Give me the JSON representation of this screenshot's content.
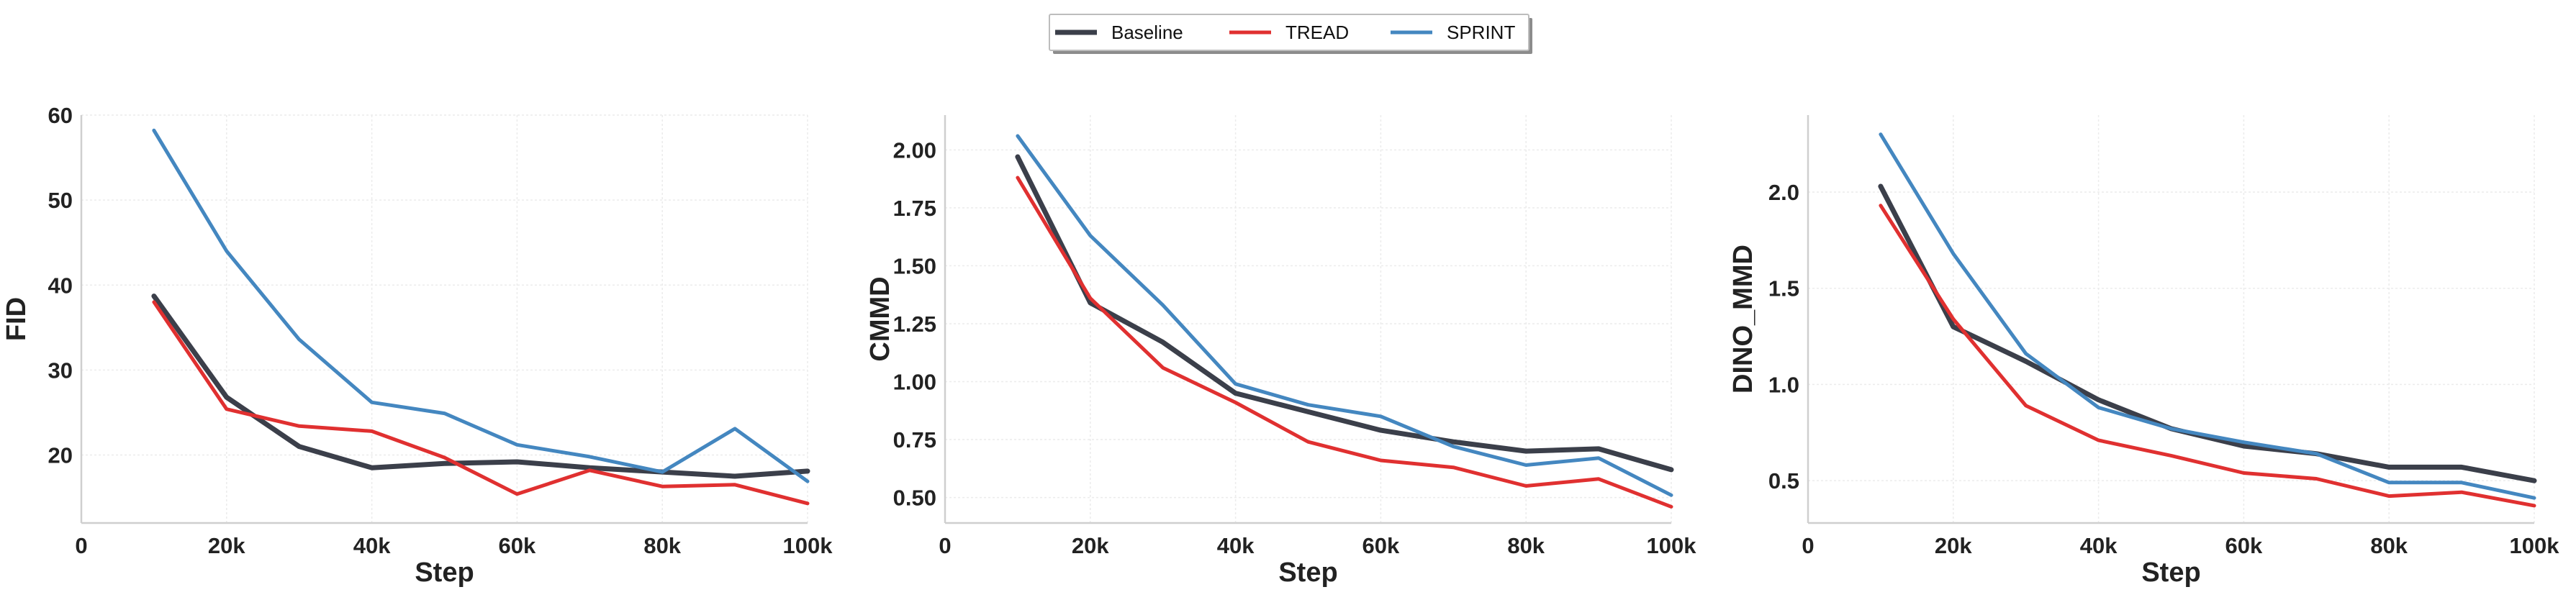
{
  "legend": {
    "items": [
      {
        "label": "Baseline",
        "color": "#3b3f4a"
      },
      {
        "label": "TREAD",
        "color": "#e03030"
      },
      {
        "label": "SPRINT",
        "color": "#4487c0"
      }
    ],
    "position": "top-center"
  },
  "chart_data": [
    {
      "type": "line",
      "xlabel": "Step",
      "ylabel": "FID",
      "xlim": [
        0,
        100000
      ],
      "ylim": [
        12,
        60
      ],
      "grid": true,
      "x": [
        10000,
        20000,
        30000,
        40000,
        50000,
        60000,
        70000,
        80000,
        90000,
        100000
      ],
      "x_ticks": [
        {
          "value": 0,
          "label": "0"
        },
        {
          "value": 20000,
          "label": "20k"
        },
        {
          "value": 40000,
          "label": "40k"
        },
        {
          "value": 60000,
          "label": "60k"
        },
        {
          "value": 80000,
          "label": "80k"
        },
        {
          "value": 100000,
          "label": "100k"
        }
      ],
      "y_ticks": [
        {
          "value": 20,
          "label": "20"
        },
        {
          "value": 30,
          "label": "30"
        },
        {
          "value": 40,
          "label": "40"
        },
        {
          "value": 50,
          "label": "50"
        },
        {
          "value": 60,
          "label": "60"
        }
      ],
      "series": [
        {
          "name": "Baseline",
          "color": "#3b3f4a",
          "values": [
            38.7,
            26.8,
            21.0,
            18.5,
            19.0,
            19.2,
            18.5,
            18.0,
            17.5,
            18.1
          ]
        },
        {
          "name": "TREAD",
          "color": "#e03030",
          "values": [
            38.0,
            25.4,
            23.4,
            22.8,
            19.7,
            15.4,
            18.2,
            16.3,
            16.5,
            14.3
          ]
        },
        {
          "name": "SPRINT",
          "color": "#4487c0",
          "values": [
            58.2,
            44.0,
            33.6,
            26.2,
            24.9,
            21.2,
            19.8,
            18.0,
            23.1,
            16.9
          ]
        }
      ]
    },
    {
      "type": "line",
      "xlabel": "Step",
      "ylabel": "CMMD",
      "xlim": [
        0,
        100000
      ],
      "ylim": [
        0.39,
        2.15
      ],
      "grid": true,
      "x": [
        10000,
        20000,
        30000,
        40000,
        50000,
        60000,
        70000,
        80000,
        90000,
        100000
      ],
      "x_ticks": [
        {
          "value": 0,
          "label": "0"
        },
        {
          "value": 20000,
          "label": "20k"
        },
        {
          "value": 40000,
          "label": "40k"
        },
        {
          "value": 60000,
          "label": "60k"
        },
        {
          "value": 80000,
          "label": "80k"
        },
        {
          "value": 100000,
          "label": "100k"
        }
      ],
      "y_ticks": [
        {
          "value": 0.5,
          "label": "0.50"
        },
        {
          "value": 0.75,
          "label": "0.75"
        },
        {
          "value": 1.0,
          "label": "1.00"
        },
        {
          "value": 1.25,
          "label": "1.25"
        },
        {
          "value": 1.5,
          "label": "1.50"
        },
        {
          "value": 1.75,
          "label": "1.75"
        },
        {
          "value": 2.0,
          "label": "2.00"
        }
      ],
      "series": [
        {
          "name": "Baseline",
          "color": "#3b3f4a",
          "values": [
            1.97,
            1.34,
            1.17,
            0.95,
            0.87,
            0.79,
            0.74,
            0.7,
            0.71,
            0.62
          ]
        },
        {
          "name": "TREAD",
          "color": "#e03030",
          "values": [
            1.88,
            1.36,
            1.06,
            0.91,
            0.74,
            0.66,
            0.63,
            0.55,
            0.58,
            0.46
          ]
        },
        {
          "name": "SPRINT",
          "color": "#4487c0",
          "values": [
            2.06,
            1.63,
            1.33,
            0.99,
            0.9,
            0.85,
            0.72,
            0.64,
            0.67,
            0.51
          ]
        }
      ]
    },
    {
      "type": "line",
      "xlabel": "Step",
      "ylabel": "DINO_MMD",
      "xlim": [
        0,
        100000
      ],
      "ylim": [
        0.28,
        2.4
      ],
      "grid": true,
      "x": [
        10000,
        20000,
        30000,
        40000,
        50000,
        60000,
        70000,
        80000,
        90000,
        100000
      ],
      "x_ticks": [
        {
          "value": 0,
          "label": "0"
        },
        {
          "value": 20000,
          "label": "20k"
        },
        {
          "value": 40000,
          "label": "40k"
        },
        {
          "value": 60000,
          "label": "60k"
        },
        {
          "value": 80000,
          "label": "80k"
        },
        {
          "value": 100000,
          "label": "100k"
        }
      ],
      "y_ticks": [
        {
          "value": 0.5,
          "label": "0.5"
        },
        {
          "value": 1.0,
          "label": "1.0"
        },
        {
          "value": 1.5,
          "label": "1.5"
        },
        {
          "value": 2.0,
          "label": "2.0"
        }
      ],
      "series": [
        {
          "name": "Baseline",
          "color": "#3b3f4a",
          "values": [
            2.03,
            1.3,
            1.12,
            0.92,
            0.77,
            0.68,
            0.64,
            0.57,
            0.57,
            0.5
          ]
        },
        {
          "name": "TREAD",
          "color": "#e03030",
          "values": [
            1.93,
            1.34,
            0.89,
            0.71,
            0.63,
            0.54,
            0.51,
            0.42,
            0.44,
            0.37
          ]
        },
        {
          "name": "SPRINT",
          "color": "#4487c0",
          "values": [
            2.3,
            1.68,
            1.16,
            0.88,
            0.77,
            0.7,
            0.64,
            0.49,
            0.49,
            0.41
          ]
        }
      ]
    }
  ]
}
